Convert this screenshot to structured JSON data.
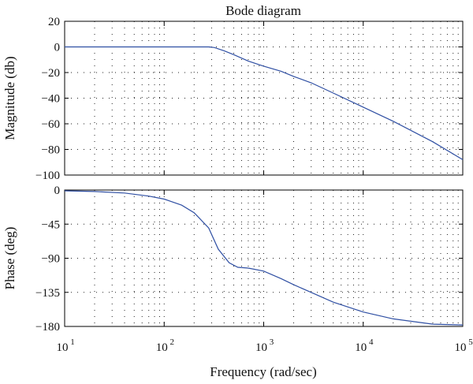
{
  "chart_data": {
    "type": "line",
    "title": "Bode diagram",
    "xlabel": "Frequency (rad/sec)",
    "xscale": "log",
    "xlim": [
      10,
      100000
    ],
    "x_tick_labels": [
      "10",
      "10",
      "10",
      "10",
      "10"
    ],
    "x_tick_exponents": [
      "1",
      "2",
      "3",
      "4",
      "5"
    ],
    "grid": true,
    "panels": [
      {
        "name": "magnitude",
        "ylabel": "Magnitude (db)",
        "ylim": [
          -100,
          20
        ],
        "y_ticks": [
          20,
          0,
          -20,
          -40,
          -60,
          -80,
          -100
        ],
        "y_tick_labels": [
          "20",
          "0",
          "−20",
          "−40",
          "−60",
          "−80",
          "−100"
        ],
        "series": [
          {
            "color": "#2f4fa3",
            "x": [
              10,
              100,
              200,
              280,
              320,
              400,
              500,
              700,
              1000,
              1500,
              2000,
              3000,
              5000,
              10000,
              20000,
              50000,
              100000
            ],
            "y": [
              0,
              0,
              0,
              0,
              -0.5,
              -3,
              -6,
              -11,
              -15,
              -19,
              -23,
              -28,
              -36,
              -47,
              -58,
              -74,
              -88
            ]
          }
        ]
      },
      {
        "name": "phase",
        "ylabel": "Phase (deg)",
        "ylim": [
          -180,
          0
        ],
        "y_ticks": [
          0,
          -45,
          -90,
          -135,
          -180
        ],
        "y_tick_labels": [
          "0",
          "−45",
          "−90",
          "−135",
          "−180"
        ],
        "series": [
          {
            "color": "#2f4fa3",
            "x": [
              10,
              20,
              40,
              70,
              100,
              150,
              200,
              280,
              350,
              450,
              550,
              700,
              1000,
              1500,
              2000,
              3000,
              5000,
              10000,
              20000,
              50000,
              100000
            ],
            "y": [
              -1,
              -2,
              -4,
              -8,
              -12,
              -20,
              -30,
              -50,
              -78,
              -96,
              -102,
              -103,
              -107,
              -117,
              -125,
              -135,
              -148,
              -161,
              -170,
              -177,
              -178
            ]
          }
        ]
      }
    ]
  }
}
